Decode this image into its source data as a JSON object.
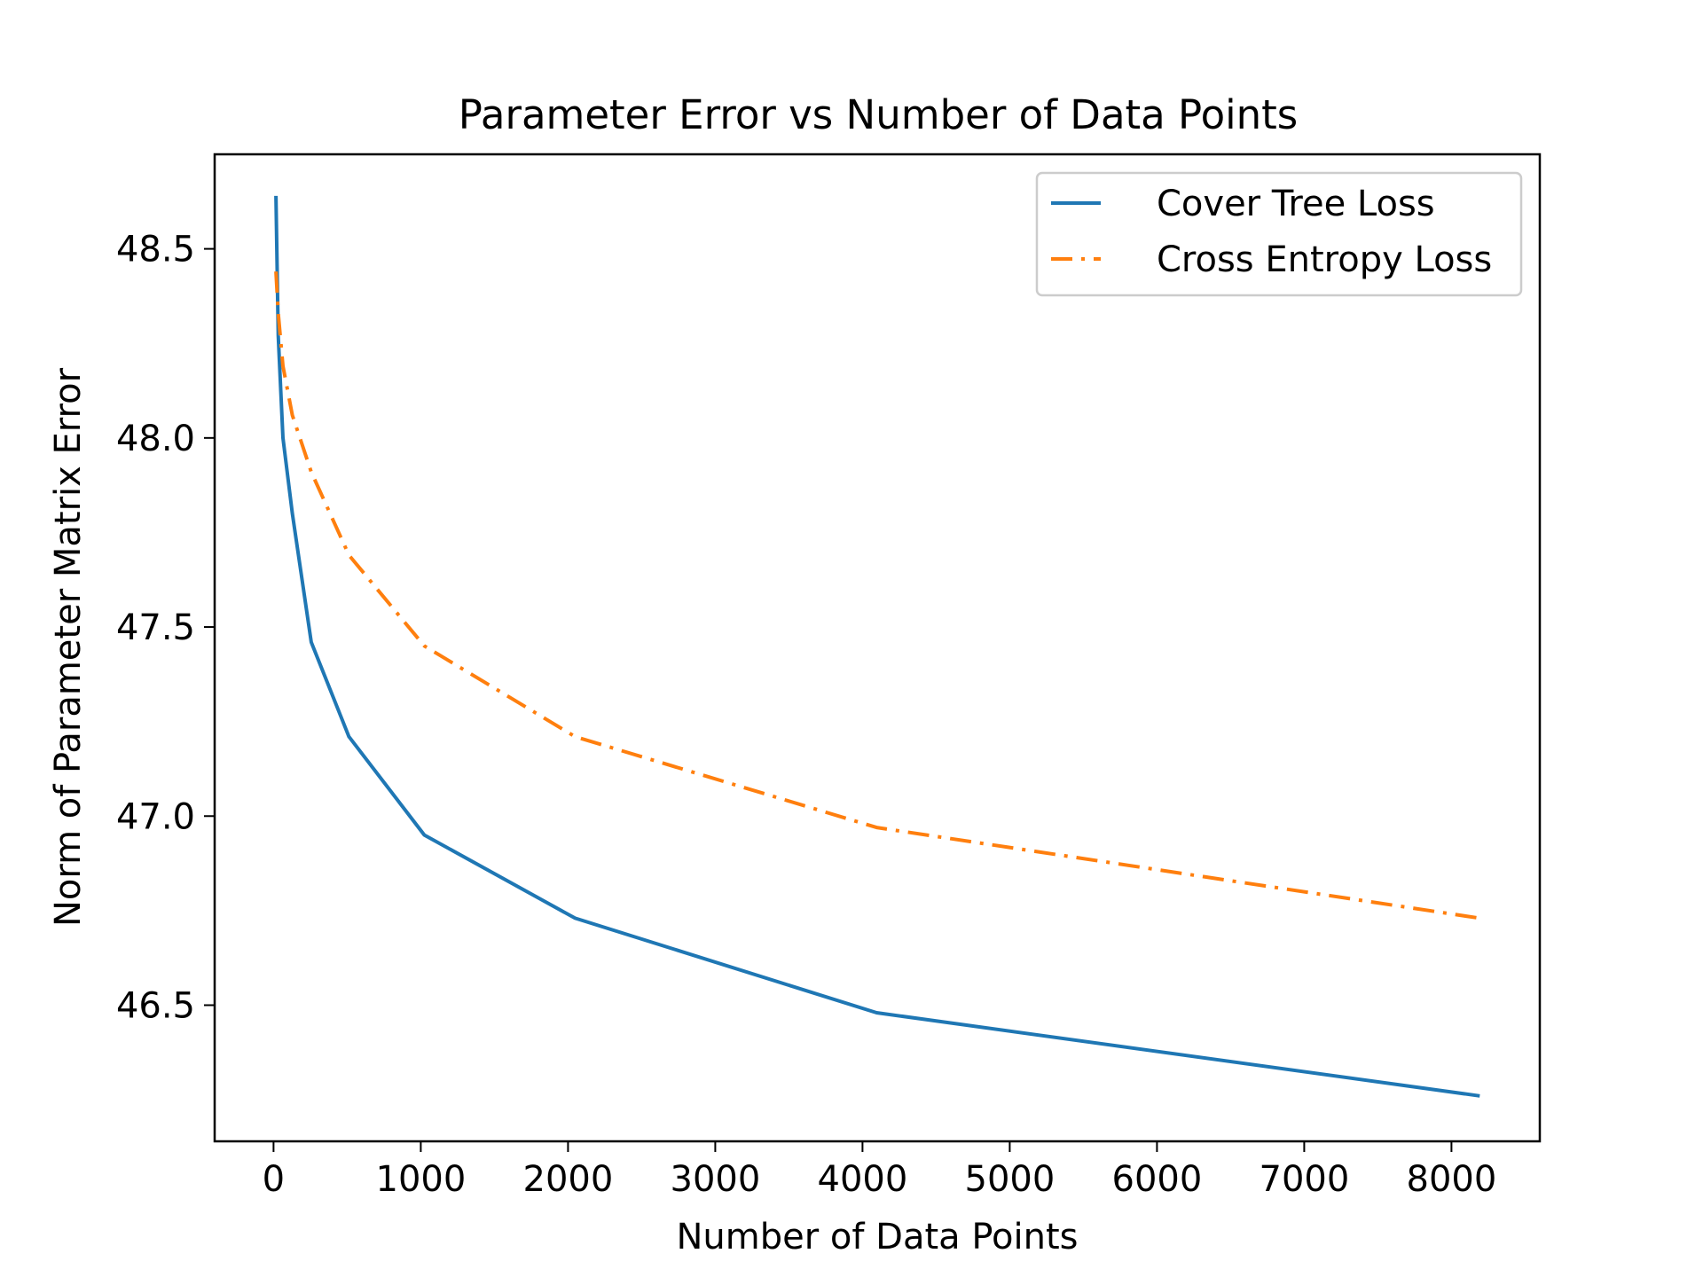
{
  "chart_data": {
    "type": "line",
    "title": "Parameter Error vs Number of Data Points",
    "xlabel": "Number of Data Points",
    "ylabel": "Norm of Parameter Matrix Error",
    "xlim": [
      -400,
      8600
    ],
    "ylim": [
      46.14,
      48.75
    ],
    "xticks": [
      0,
      1000,
      2000,
      3000,
      4000,
      5000,
      6000,
      7000,
      8000
    ],
    "xtick_labels": [
      "0",
      "1000",
      "2000",
      "3000",
      "4000",
      "5000",
      "6000",
      "7000",
      "8000"
    ],
    "yticks": [
      46.5,
      47.0,
      47.5,
      48.0,
      48.5
    ],
    "ytick_labels": [
      "46.5",
      "47.0",
      "47.5",
      "48.0",
      "48.5"
    ],
    "grid": false,
    "legend_position": "top-right",
    "x": [
      16,
      32,
      64,
      128,
      256,
      512,
      1024,
      2048,
      4096,
      8192
    ],
    "series": [
      {
        "name": "Cover Tree Loss",
        "color": "#1f77b4",
        "style": "solid",
        "values": [
          48.64,
          48.27,
          48.0,
          47.8,
          47.46,
          47.21,
          46.95,
          46.73,
          46.48,
          46.26
        ]
      },
      {
        "name": "Cross Entropy Loss",
        "color": "#ff7f0e",
        "style": "dashdot",
        "values": [
          48.44,
          48.33,
          48.19,
          48.06,
          47.91,
          47.69,
          47.45,
          47.21,
          46.97,
          46.73
        ]
      }
    ]
  }
}
